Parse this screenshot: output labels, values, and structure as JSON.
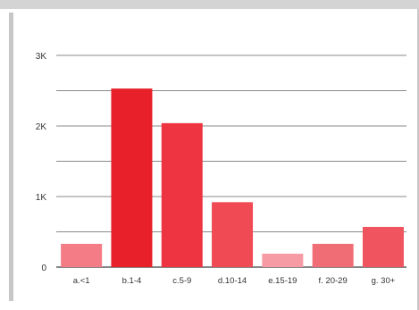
{
  "chart_data": {
    "type": "bar",
    "categories": [
      "a.<1",
      "b.1-4",
      "c.5-9",
      "d.10-14",
      "e.15-19",
      "f. 20-29",
      "g. 30+"
    ],
    "values": [
      330,
      2530,
      2040,
      920,
      190,
      330,
      570
    ],
    "bar_colors": [
      "#f47c86",
      "#e8202a",
      "#ee3440",
      "#f04a54",
      "#f69aa3",
      "#f16d76",
      "#f0555f"
    ],
    "ylim": [
      0,
      3000
    ],
    "ytick_values": [
      0,
      1000,
      2000,
      3000
    ],
    "ytick_labels": [
      "0",
      "1K",
      "2K",
      "3K"
    ],
    "grid": true,
    "title": "",
    "xlabel": "",
    "ylabel": ""
  }
}
